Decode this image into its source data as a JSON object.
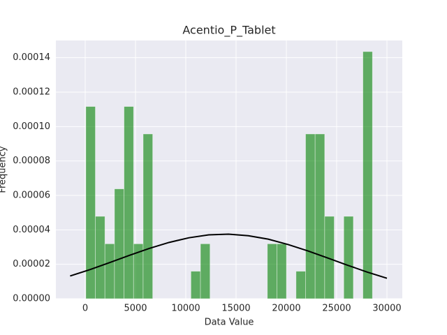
{
  "chart_data": {
    "type": "histogram",
    "title": "Acentio_P_Tablet",
    "xlabel": "Data Value",
    "ylabel": "Frequency",
    "bins": [
      60,
      1010,
      1960,
      2910,
      3860,
      4810,
      5760,
      6710,
      7660,
      8610,
      9560,
      10510,
      11460,
      12410,
      13360,
      14310,
      15260,
      16210,
      17160,
      18110,
      19060,
      20010,
      20960,
      21910,
      22860,
      23810,
      24760,
      25710,
      26660,
      27610,
      28560
    ],
    "values": [
      0.00011165,
      4.785e-05,
      3.19e-05,
      6.38e-05,
      0.00011165,
      3.19e-05,
      9.57e-05,
      0,
      0,
      0,
      0,
      1.595e-05,
      3.19e-05,
      0,
      0,
      0,
      0,
      0,
      0,
      3.19e-05,
      3.19e-05,
      0,
      1.595e-05,
      9.57e-05,
      9.57e-05,
      4.785e-05,
      0,
      4.785e-05,
      0,
      0.00014355
    ],
    "color": "#008000",
    "curve": {
      "color": "#000000",
      "x": [
        -1500,
        469,
        2438,
        4406,
        6375,
        8344,
        10313,
        12281,
        14250,
        16219,
        18188,
        20156,
        22125,
        24094,
        26063,
        28031,
        30000
      ],
      "y": [
        1.32e-05,
        1.69e-05,
        2.1e-05,
        2.52e-05,
        2.92e-05,
        3.27e-05,
        3.54e-05,
        3.71e-05,
        3.75e-05,
        3.66e-05,
        3.46e-05,
        3.15e-05,
        2.78e-05,
        2.37e-05,
        1.95e-05,
        1.55e-05,
        1.19e-05
      ]
    },
    "xlim": [
      -2917,
      31528
    ],
    "ylim": [
      0,
      0.00015
    ],
    "xticks": [
      0,
      5000,
      10000,
      15000,
      20000,
      25000,
      30000
    ],
    "yticks": [
      {
        "value": 0,
        "label": "0.00000"
      },
      {
        "value": 2e-05,
        "label": "0.00002"
      },
      {
        "value": 4e-05,
        "label": "0.00004"
      },
      {
        "value": 6e-05,
        "label": "0.00006"
      },
      {
        "value": 8e-05,
        "label": "0.00008"
      },
      {
        "value": 0.0001,
        "label": "0.00010"
      },
      {
        "value": 0.00012,
        "label": "0.00012"
      },
      {
        "value": 0.00014,
        "label": "0.00014"
      }
    ],
    "grid": true
  }
}
